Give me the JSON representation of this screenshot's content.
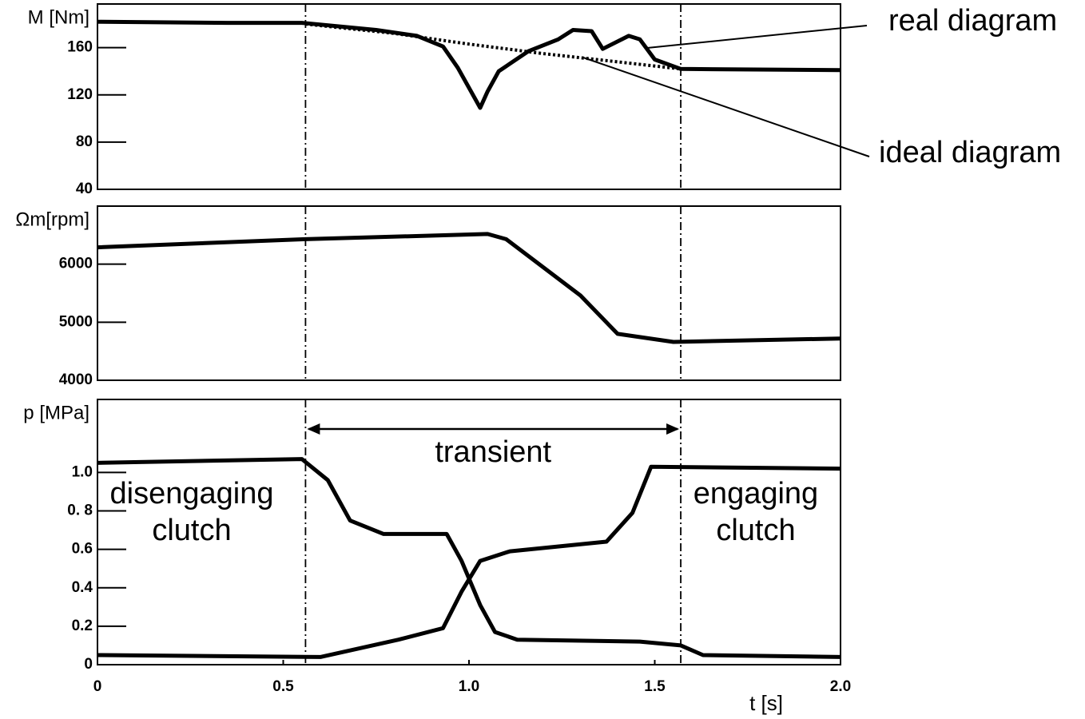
{
  "chart_data": [
    {
      "type": "line",
      "ylabel": "M [Nm]",
      "xlim": [
        0,
        2
      ],
      "ylim": [
        40,
        197
      ],
      "yticks": [
        40,
        80,
        120,
        160
      ],
      "vlines": [
        0.56,
        1.57
      ],
      "series": [
        {
          "name": "real diagram",
          "color": "#000000",
          "line_style": "solid",
          "x": [
            0,
            0.35,
            0.55,
            0.75,
            0.86,
            0.93,
            0.97,
            1.03,
            1.05,
            1.08,
            1.16,
            1.24,
            1.28,
            1.33,
            1.36,
            1.43,
            1.46,
            1.5,
            1.57,
            2.0
          ],
          "values": [
            182,
            181,
            181,
            175,
            170,
            161,
            143,
            109,
            123,
            140,
            157,
            167,
            175,
            174,
            159,
            170,
            167,
            150,
            142,
            141
          ]
        },
        {
          "name": "ideal diagram",
          "color": "#000000",
          "line_style": "dotted",
          "x": [
            0.56,
            0.8,
            1.0,
            1.2,
            1.4,
            1.57
          ],
          "values": [
            180,
            172,
            163,
            155,
            148,
            142
          ]
        }
      ]
    },
    {
      "type": "line",
      "ylabel": "Ωm[rpm]",
      "xlim": [
        0,
        2
      ],
      "ylim": [
        4000,
        7000
      ],
      "yticks": [
        4000,
        5000,
        6000
      ],
      "vlines": [
        0.56,
        1.57
      ],
      "color": "#000000",
      "x": [
        0,
        0.56,
        1.05,
        1.1,
        1.3,
        1.4,
        1.55,
        2.0
      ],
      "values": [
        6290,
        6430,
        6520,
        6430,
        5460,
        4800,
        4660,
        4720
      ]
    },
    {
      "type": "line",
      "ylabel": "p [MPa]",
      "xlabel": "t [s]",
      "xlim": [
        0,
        2
      ],
      "ylim": [
        0,
        1.38
      ],
      "yticks": [
        0,
        0.2,
        0.4,
        0.6,
        {
          "value": 0.8,
          "label": "0. 8"
        },
        {
          "value": 1,
          "label": "1.0"
        }
      ],
      "xticks": [
        0,
        0.5,
        {
          "value": 1,
          "label": "1.0"
        },
        1.5,
        {
          "value": 2,
          "label": "2.0"
        }
      ],
      "vlines": [
        0.56,
        1.57
      ],
      "annotations": [
        {
          "lines": [
            "disengaging",
            "clutch"
          ]
        },
        {
          "lines": [
            "engaging",
            "clutch"
          ]
        },
        {
          "lines": [
            "transient"
          ]
        }
      ],
      "series": [
        {
          "color": "#000000",
          "x": [
            0,
            0.55,
            0.62,
            0.68,
            0.77,
            0.94,
            0.98,
            1.03,
            1.07,
            1.13,
            1.46,
            1.57,
            1.63,
            2.0
          ],
          "values": [
            1.05,
            1.07,
            0.96,
            0.75,
            0.68,
            0.68,
            0.54,
            0.31,
            0.17,
            0.13,
            0.12,
            0.1,
            0.05,
            0.04
          ]
        },
        {
          "color": "#000000",
          "x": [
            0,
            0.6,
            0.81,
            0.93,
            0.98,
            1.03,
            1.11,
            1.37,
            1.44,
            1.49,
            2.0
          ],
          "values": [
            0.05,
            0.04,
            0.13,
            0.19,
            0.38,
            0.54,
            0.59,
            0.64,
            0.79,
            1.03,
            1.02
          ]
        }
      ]
    }
  ]
}
